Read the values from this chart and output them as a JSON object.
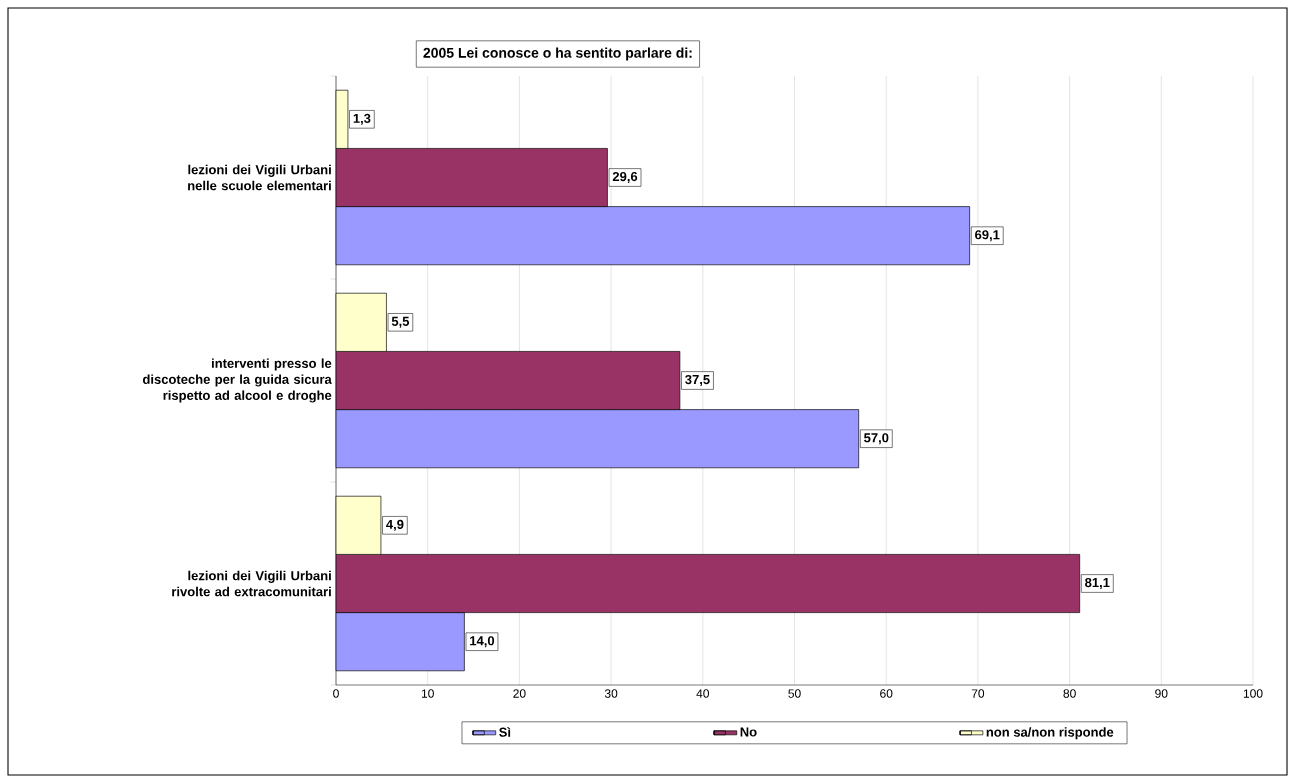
{
  "chart_data": {
    "type": "bar",
    "orientation": "horizontal",
    "title": "2005 Lei conosce o ha sentito parlare di:",
    "categories": [
      "lezioni dei Vigili Urbani nelle scuole elementari",
      "interventi presso le discoteche per la guida sicura rispetto ad alcool e droghe",
      "lezioni dei Vigili Urbani rivolte ad extracomunitari"
    ],
    "series": [
      {
        "name": "Sì",
        "color": "#9999ff",
        "values": [
          69.1,
          57.0,
          14.0
        ],
        "value_labels": [
          "69,1",
          "57,0",
          "14,0"
        ]
      },
      {
        "name": "No",
        "color": "#993366",
        "values": [
          29.6,
          37.5,
          81.1
        ],
        "value_labels": [
          "29,6",
          "37,5",
          "81,1"
        ]
      },
      {
        "name": "non sa/non risponde",
        "color": "#ffffcc",
        "values": [
          1.3,
          5.5,
          4.9
        ],
        "value_labels": [
          "1,3",
          "5,5",
          "4,9"
        ]
      }
    ],
    "xlim": [
      0,
      100
    ],
    "xticks": [
      0,
      10,
      20,
      30,
      40,
      50,
      60,
      70,
      80,
      90,
      100
    ],
    "grid": "x",
    "legend": "bottom"
  }
}
